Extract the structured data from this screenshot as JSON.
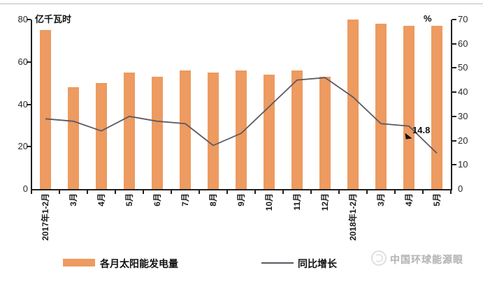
{
  "chart_data": {
    "type": "bar",
    "combo": "bar+line, dual y-axis",
    "categories": [
      "2017年1-2月",
      "3月",
      "4月",
      "5月",
      "6月",
      "7月",
      "8月",
      "9月",
      "10月",
      "11月",
      "12月",
      "2018年1-2月",
      "3月",
      "4月",
      "5月"
    ],
    "series": [
      {
        "name": "各月太阳能发电量",
        "type": "bar",
        "axis": "left",
        "unit": "亿千瓦时",
        "values": [
          75,
          48,
          50,
          55,
          53,
          56,
          55,
          56,
          54,
          56,
          53,
          80,
          78,
          77,
          77
        ]
      },
      {
        "name": "同比增长",
        "type": "line",
        "axis": "right",
        "unit": "%",
        "values": [
          29,
          28,
          24,
          30,
          28,
          27,
          18,
          23,
          34,
          45,
          46,
          38,
          27,
          26,
          14.8
        ]
      }
    ],
    "left_axis": {
      "unit_label": "亿千瓦时",
      "ticks": [
        0,
        20,
        40,
        60,
        80
      ],
      "min": 0,
      "max": 80
    },
    "right_axis": {
      "unit_label": "%",
      "ticks": [
        0,
        10,
        20,
        30,
        40,
        50,
        60,
        70
      ],
      "min": 0,
      "max": 70
    },
    "annotation": {
      "text": "14.8",
      "series": "同比增长",
      "category": "2018年5月"
    },
    "legend_position": "bottom",
    "grid": false,
    "colors": {
      "bar": "#ED9B60",
      "line": "#5A5A64",
      "axis": "#1F1F1F"
    }
  },
  "watermark": {
    "text": "中国环球能源眼"
  }
}
